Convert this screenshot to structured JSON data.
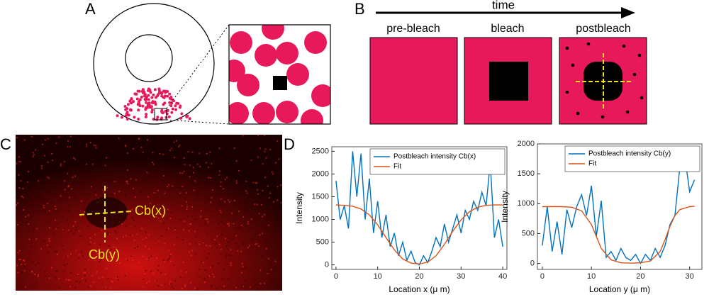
{
  "figure": {
    "panels": [
      "A",
      "B",
      "C",
      "D"
    ],
    "time_label": "time",
    "stages": [
      "pre-bleach",
      "bleach",
      "postbleach"
    ],
    "profile_labels": [
      "Cb(x)",
      "Cb(y)"
    ]
  },
  "chart_data": [
    {
      "type": "line",
      "xlabel": "Location x (μ m)",
      "ylabel": "Intensity",
      "xlim": [
        -1,
        41
      ],
      "ylim": [
        -100,
        2600
      ],
      "xticks": [
        0,
        10,
        20,
        30,
        40
      ],
      "yticks": [
        0,
        500,
        1000,
        1500,
        2000,
        2500
      ],
      "legend": "upper right",
      "series": [
        {
          "name": "Postbleach intensity Cb(x)",
          "color": "#0072bd",
          "x": [
            0,
            1,
            2,
            3,
            4,
            5,
            6,
            7,
            8,
            9,
            10,
            11,
            12,
            13,
            14,
            15,
            16,
            17,
            18,
            19,
            20,
            21,
            22,
            23,
            24,
            25,
            26,
            27,
            28,
            29,
            30,
            31,
            32,
            33,
            34,
            35,
            36,
            37,
            38,
            39,
            40
          ],
          "values": [
            1850,
            1000,
            1300,
            800,
            2500,
            1500,
            2450,
            1000,
            1900,
            700,
            1400,
            600,
            1100,
            400,
            700,
            200,
            500,
            100,
            300,
            50,
            0,
            200,
            50,
            300,
            600,
            400,
            900,
            500,
            800,
            1100,
            700,
            1200,
            1000,
            1400,
            1200,
            1600,
            1300,
            2250,
            600,
            1000,
            400
          ]
        },
        {
          "name": "Fit",
          "color": "#d95319",
          "x": [
            0,
            2,
            4,
            6,
            8,
            10,
            12,
            14,
            16,
            18,
            20,
            22,
            24,
            26,
            28,
            30,
            32,
            34,
            36,
            38,
            40
          ],
          "values": [
            1320,
            1310,
            1290,
            1230,
            1100,
            880,
            600,
            330,
            130,
            40,
            20,
            60,
            200,
            450,
            740,
            990,
            1170,
            1270,
            1310,
            1320,
            1320
          ]
        }
      ]
    },
    {
      "type": "line",
      "xlabel": "Location y (μ m)",
      "ylabel": "Intensity",
      "xlim": [
        -1,
        32.5
      ],
      "ylim": [
        -100,
        2000
      ],
      "xticks": [
        0,
        10,
        20,
        30
      ],
      "yticks": [
        0,
        500,
        1000,
        1500,
        2000
      ],
      "legend": "upper right",
      "series": [
        {
          "name": "Postbleach intensity Cb(y)",
          "color": "#0072bd",
          "x": [
            0,
            1,
            2,
            3,
            4,
            5,
            6,
            7,
            8,
            9,
            10,
            11,
            12,
            13,
            14,
            15,
            16,
            17,
            18,
            19,
            20,
            21,
            22,
            23,
            24,
            25,
            26,
            27,
            28,
            29,
            30,
            31
          ],
          "values": [
            300,
            950,
            200,
            700,
            150,
            900,
            600,
            950,
            1150,
            800,
            1300,
            450,
            1050,
            100,
            200,
            50,
            250,
            100,
            50,
            150,
            0,
            150,
            50,
            250,
            100,
            300,
            650,
            800,
            1600,
            1800,
            1200,
            1400
          ]
        },
        {
          "name": "Fit",
          "color": "#d95319",
          "x": [
            0,
            2,
            4,
            6,
            8,
            10,
            11,
            12,
            14,
            16,
            18,
            20,
            22,
            24,
            25,
            26,
            27,
            28,
            30,
            31
          ],
          "values": [
            950,
            950,
            950,
            940,
            880,
            650,
            450,
            250,
            60,
            10,
            5,
            10,
            40,
            200,
            400,
            620,
            800,
            900,
            950,
            955
          ]
        }
      ]
    }
  ]
}
